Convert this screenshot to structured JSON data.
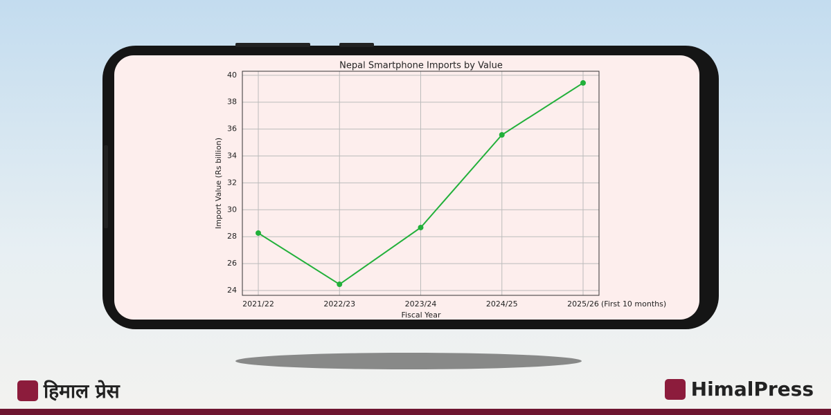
{
  "chart_data": {
    "type": "line",
    "title": "Nepal Smartphone Imports by Value",
    "x_label": "Fiscal Year",
    "y_label": "Import Value (Rs billion)",
    "categories": [
      "2021/22",
      "2022/23",
      "2023/24",
      "2024/25",
      "2025/26"
    ],
    "annotation": "(First 10 months)",
    "series": [
      {
        "name": "Import Value",
        "color": "#22b03a",
        "values": [
          28.27,
          24.46,
          28.68,
          35.57,
          39.43
        ]
      }
    ],
    "ylim": [
      23.64,
      40.3
    ],
    "yticks": [
      24,
      26,
      28,
      30,
      32,
      34,
      36,
      38,
      40
    ],
    "grid": true
  },
  "branding": {
    "left": "हिमाल प्रेस",
    "right": "HimalPress"
  }
}
